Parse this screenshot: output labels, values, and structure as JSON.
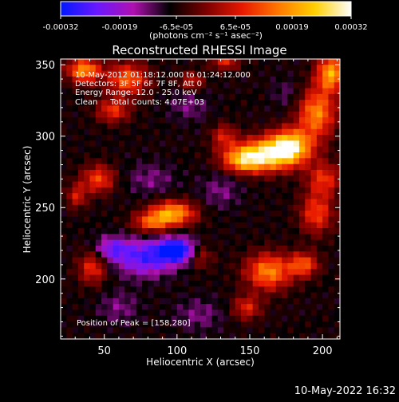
{
  "chart_data": {
    "type": "heatmap",
    "title": "Reconstructed RHESSI Image",
    "xlabel": "Heliocentric X (arcsec)",
    "ylabel": "Heliocentric Y (arcsec)",
    "xlim": [
      20,
      212
    ],
    "ylim": [
      158,
      354
    ],
    "x_ticks": [
      50,
      100,
      150,
      200
    ],
    "y_ticks": [
      200,
      250,
      300,
      350
    ],
    "colorbar": {
      "min": -0.00032,
      "max": 0.00032,
      "ticks": [
        -0.00032,
        -0.00019,
        -6.5e-05,
        6.5e-05,
        0.00019,
        0.00032
      ],
      "tick_labels": [
        "-0.00032",
        "-0.00019",
        "-6.5e-05",
        "6.5e-05",
        "0.00019",
        "0.00032"
      ],
      "units_label": "(photons cm⁻² s⁻¹ asec⁻²)",
      "colormap": [
        "#0018ff",
        "#6a18ff",
        "#b010b0",
        "#000000",
        "#7a0000",
        "#e81800",
        "#ff7800",
        "#ffd000",
        "#ffffff"
      ]
    },
    "annotations": [
      "10-May-2012 01:18:12.000 to 01:24:12.000",
      "Detectors: 3F 5F 6F 7F 8F, Att 0",
      "Energy Range: 12.0 - 25.0 keV",
      "Clean     Total Counts: 4.07E+03"
    ],
    "peak_label": "Position of Peak = [158,280]",
    "peak_position": [
      158,
      280
    ],
    "sources": [
      {
        "x": 162,
        "y": 287,
        "sx": 16,
        "sy": 8,
        "amp": 1.0
      },
      {
        "x": 178,
        "y": 294,
        "sx": 10,
        "sy": 8,
        "amp": 0.85
      },
      {
        "x": 145,
        "y": 283,
        "sx": 10,
        "sy": 6,
        "amp": 0.6
      },
      {
        "x": 196,
        "y": 316,
        "sx": 9,
        "sy": 12,
        "amp": 0.75
      },
      {
        "x": 206,
        "y": 344,
        "sx": 7,
        "sy": 9,
        "amp": 0.85
      },
      {
        "x": 201,
        "y": 270,
        "sx": 8,
        "sy": 8,
        "amp": 0.5
      },
      {
        "x": 196,
        "y": 246,
        "sx": 8,
        "sy": 10,
        "amp": 0.55
      },
      {
        "x": 97,
        "y": 246,
        "sx": 11,
        "sy": 6,
        "amp": 0.85
      },
      {
        "x": 82,
        "y": 239,
        "sx": 9,
        "sy": 5,
        "amp": 0.55
      },
      {
        "x": 163,
        "y": 205,
        "sx": 11,
        "sy": 9,
        "amp": 0.75
      },
      {
        "x": 187,
        "y": 210,
        "sx": 7,
        "sy": 6,
        "amp": 0.6
      },
      {
        "x": 148,
        "y": 180,
        "sx": 7,
        "sy": 6,
        "amp": 0.45
      },
      {
        "x": 36,
        "y": 346,
        "sx": 8,
        "sy": 6,
        "amp": 0.8
      },
      {
        "x": 66,
        "y": 340,
        "sx": 10,
        "sy": 8,
        "amp": 0.65
      },
      {
        "x": 56,
        "y": 318,
        "sx": 8,
        "sy": 6,
        "amp": 0.5
      },
      {
        "x": 46,
        "y": 270,
        "sx": 8,
        "sy": 7,
        "amp": 0.55
      },
      {
        "x": 31,
        "y": 258,
        "sx": 5,
        "sy": 6,
        "amp": 0.4
      },
      {
        "x": 42,
        "y": 208,
        "sx": 7,
        "sy": 8,
        "amp": 0.5
      },
      {
        "x": 116,
        "y": 216,
        "sx": 6,
        "sy": 6,
        "amp": 0.35
      },
      {
        "x": 132,
        "y": 300,
        "sx": 6,
        "sy": 6,
        "amp": 0.4
      },
      {
        "x": 110,
        "y": 338,
        "sx": 6,
        "sy": 5,
        "amp": 0.4
      },
      {
        "x": 133,
        "y": 352,
        "sx": 7,
        "sy": 4,
        "amp": 0.45
      }
    ],
    "negative_regions": [
      {
        "x": 78,
        "y": 215,
        "sx": 14,
        "sy": 9,
        "amp": 0.6
      },
      {
        "x": 100,
        "y": 220,
        "sx": 9,
        "sy": 6,
        "amp": 0.85
      },
      {
        "x": 55,
        "y": 221,
        "sx": 8,
        "sy": 6,
        "amp": 0.45
      },
      {
        "x": 82,
        "y": 270,
        "sx": 12,
        "sy": 8,
        "amp": 0.2
      },
      {
        "x": 130,
        "y": 262,
        "sx": 10,
        "sy": 9,
        "amp": 0.2
      },
      {
        "x": 108,
        "y": 322,
        "sx": 10,
        "sy": 8,
        "amp": 0.2
      },
      {
        "x": 115,
        "y": 175,
        "sx": 12,
        "sy": 8,
        "amp": 0.2
      },
      {
        "x": 60,
        "y": 180,
        "sx": 10,
        "sy": 8,
        "amp": 0.2
      },
      {
        "x": 175,
        "y": 330,
        "sx": 7,
        "sy": 7,
        "amp": 0.15
      }
    ],
    "background_level": -0.22
  },
  "footer_timestamp": "10-May-2022 16:32"
}
